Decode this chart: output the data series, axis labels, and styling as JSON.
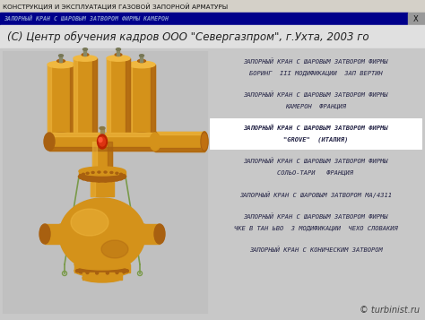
{
  "title_bar": "КОНСТРУКЦИЯ И ЭКСПЛУАТАЦИЯ ГАЗОВОЙ ЗАПОРНОЙ АРМАТУРЫ",
  "nav_bar_text": "ЗАПОРНЫЙ КРАН С ШАРОВЫМ ЗАТВОРОМ ФИРМЫ КАМЕРОН",
  "header_text": "(С) Центр обучения кадров ООО \"Севергазпром\", г.Ухта, 2003 го",
  "watermark": "© turbinist.ru",
  "bg_color": "#c8c8c8",
  "title_bar_bg": "#d4d0c8",
  "nav_bar_bg": "#00008b",
  "nav_bar_text_color": "#8899cc",
  "menu_items": [
    {
      "lines": [
        "ЗАПОРНЫЙ КРАН С ШАРОВЫМ ЗАТВОРОМ ФИРМЫ",
        "БОРИНГ  III МОДИФИКАЦИИ  ЗАП ВЕРТИН"
      ],
      "bold": false,
      "bg": "#c8c8c8"
    },
    {
      "lines": [
        "ЗАПОРНЫЙ КРАН С ШАРОВЫМ ЗАТВОРОМ ФИРМЫ",
        "КАМЕРОН  ФРАНЦИЯ"
      ],
      "bold": false,
      "bg": "#c8c8c8"
    },
    {
      "lines": [
        "ЗАПОРНЫЙ КРАН С ШАРОВЫМ ЗАТВОРОМ ФИРМЫ",
        "\"GROVE\"  (ИТАЛИЯ)"
      ],
      "bold": true,
      "bg": "#ffffff"
    },
    {
      "lines": [
        "ЗАПОРНЫЙ КРАН С ШАРОВЫМ ЗАТВОРОМ ФИРМЫ",
        "СОЛЬО-ТАРИ   ФРАНЦИЯ"
      ],
      "bold": false,
      "bg": "#c8c8c8"
    },
    {
      "lines": [
        "ЗАПОРНЫЙ КРАН С ШАРОВЫМ ЗАТВОРОМ МА/4311"
      ],
      "bold": false,
      "bg": "#c8c8c8"
    },
    {
      "lines": [
        "ЗАПОРНЫЙ КРАН С ШАРОВЫМ ЗАТВОРОМ ФИРМЫ",
        "ЧКЕ В ТАН ЬВО  3 МОДИФИКАЦИИ  ЧЕХО СЛОВАКИЯ"
      ],
      "bold": false,
      "bg": "#c8c8c8"
    },
    {
      "lines": [
        "ЗАПОРНЫЙ КРАН С КОНИЧЕСКИМ ЗАТВОРОМ"
      ],
      "bold": false,
      "bg": "#c8c8c8"
    }
  ],
  "cyl_color": "#d4921a",
  "cyl_dark": "#a86010",
  "cyl_light": "#f0b840",
  "cyl_shade": "#c07010",
  "pipe_color": "#c8a830",
  "green_line": "#7a9a4a"
}
